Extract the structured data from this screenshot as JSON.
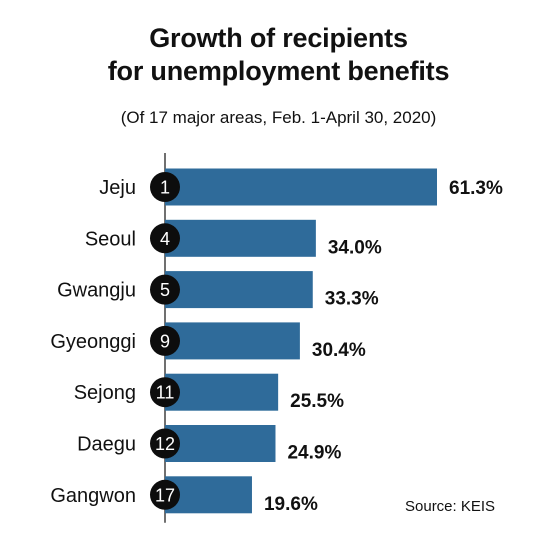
{
  "header": {
    "title_line1": "Growth of recipients",
    "title_line2": "for unemployment benefits",
    "subtitle": "(Of 17 major areas, Feb. 1-April 30, 2020)"
  },
  "source": "Source: KEIS",
  "colors": {
    "bar": "#2f6b9a",
    "rank_circle": "#0d0d0d",
    "axis": "#333333"
  },
  "chart_data": {
    "type": "bar",
    "orientation": "horizontal",
    "categories": [
      "Jeju",
      "Seoul",
      "Gwangju",
      "Gyeonggi",
      "Sejong",
      "Daegu",
      "Gangwon"
    ],
    "ranks": [
      "1",
      "4",
      "5",
      "9",
      "11",
      "12",
      "17"
    ],
    "values": [
      61.3,
      34.0,
      33.3,
      30.4,
      25.5,
      24.9,
      19.6
    ],
    "value_labels": [
      "61.3%",
      "34.0%",
      "33.3%",
      "30.4%",
      "25.5%",
      "24.9%",
      "19.6%"
    ],
    "unit": "%",
    "xlim": [
      0,
      61.3
    ],
    "grid": false
  }
}
